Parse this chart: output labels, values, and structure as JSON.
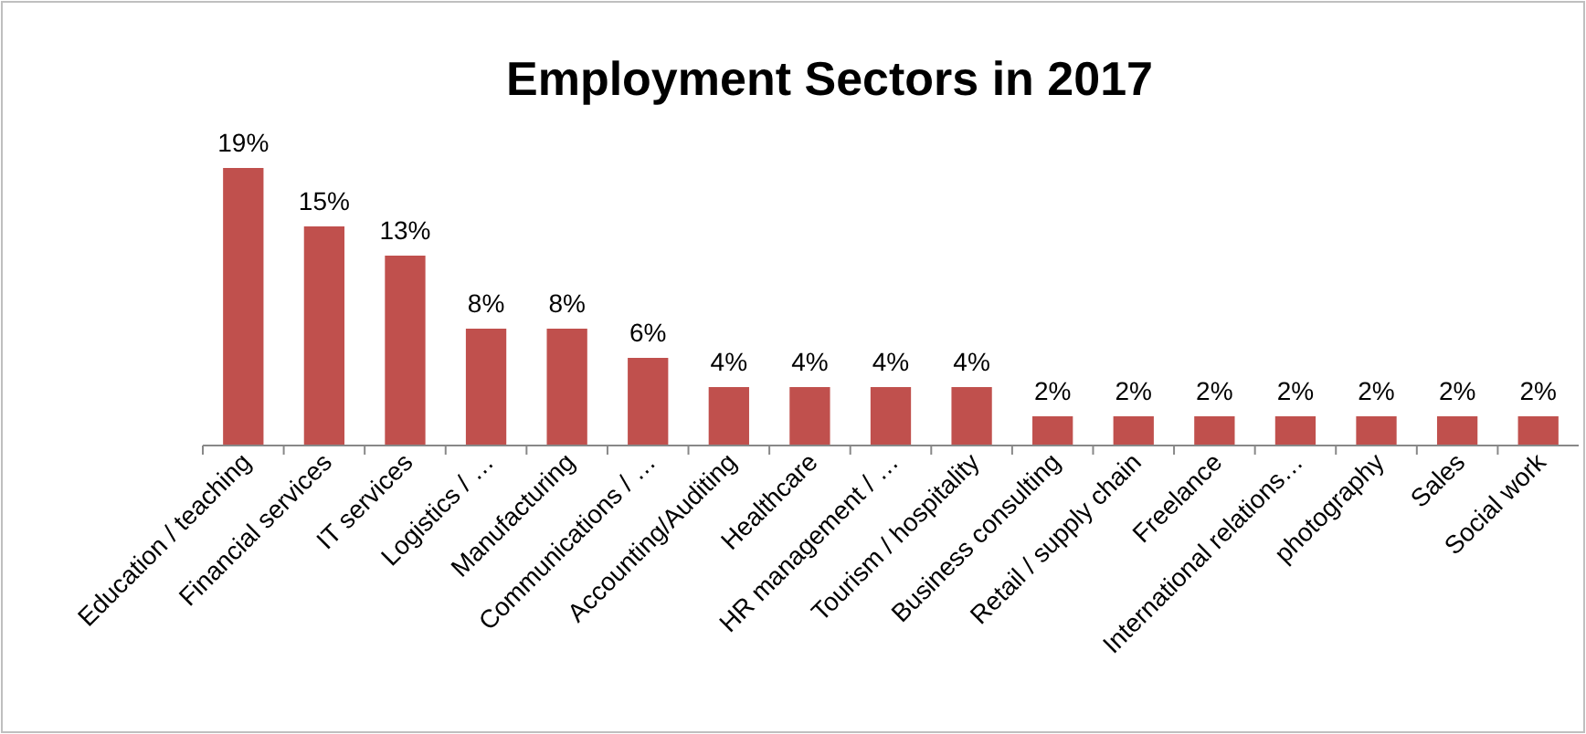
{
  "chart_data": {
    "type": "bar",
    "title": "Employment Sectors in 2017",
    "categories": [
      "Education / teaching",
      "Financial services",
      "IT services",
      "Logistics / …",
      "Manufacturing",
      "Communications / …",
      "Accounting/Auditing",
      "Healthcare",
      "HR management / …",
      "Tourism / hospitality",
      "Business consulting",
      "Retail / supply chain",
      "Freelance",
      "International relations…",
      "photography",
      "Sales",
      "Social work"
    ],
    "values": [
      19,
      15,
      13,
      8,
      8,
      6,
      4,
      4,
      4,
      4,
      2,
      2,
      2,
      2,
      2,
      2,
      2
    ],
    "value_labels": [
      "19%",
      "15%",
      "13%",
      "8%",
      "8%",
      "6%",
      "4%",
      "4%",
      "4%",
      "4%",
      "2%",
      "2%",
      "2%",
      "2%",
      "2%",
      "2%",
      "2%"
    ],
    "color": "#c0504d"
  }
}
